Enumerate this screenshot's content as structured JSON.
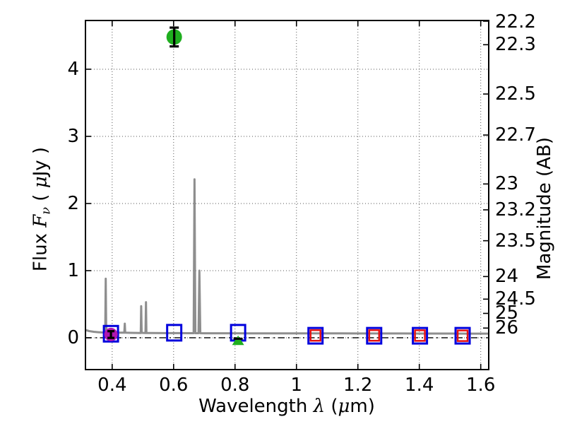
{
  "figure": {
    "background": "#ffffff"
  },
  "axes": {
    "xlabel": {
      "parts": [
        "Wavelength ",
        "λ",
        " (",
        "μ",
        "m)"
      ]
    },
    "ylabel_left": {
      "parts": [
        "Flux ",
        "F",
        "ν",
        " ( ",
        "μ",
        "Jy )"
      ]
    },
    "ylabel_right": "Magnitude (AB)"
  },
  "chart_data": {
    "type": "line",
    "title": "",
    "xlabel": "Wavelength λ (μm)",
    "ylabel_left": "Flux Fν (μJy)",
    "ylabel_right": "Magnitude (AB)",
    "xlim": [
      0.313,
      1.626
    ],
    "ylim": [
      -0.474,
      4.726
    ],
    "grid": true,
    "x_ticks": [
      0.4,
      0.6,
      0.8,
      1.0,
      1.2,
      1.4,
      1.6
    ],
    "x_tick_labels": [
      "0.4",
      "0.6",
      "0.8",
      "1",
      "1.2",
      "1.4",
      "1.6"
    ],
    "y_ticks_left": [
      0,
      1,
      2,
      3,
      4
    ],
    "y_tick_labels_left": [
      "0",
      "1",
      "2",
      "3",
      "4"
    ],
    "y_ticks_right_mag": [
      22.2,
      22.3,
      22.5,
      22.7,
      23,
      23.2,
      23.5,
      24,
      24.5,
      25,
      26
    ],
    "y_tick_labels_right": [
      "22.2",
      "22.3",
      "22.5",
      "22.7",
      "23",
      "23.2",
      "23.5",
      "24",
      "24.5",
      "25",
      "26"
    ],
    "mag_zeropoint_ujy": 23.9,
    "zero_line": {
      "y": 0,
      "style": "dash-dot",
      "color": "#000000"
    },
    "colors": {
      "spectrum": "#8e8e8e",
      "observed_squares": "#0000dd",
      "model_squares": "#e51212",
      "detection_circle": "#1fae1f",
      "model_circle": "#b016b0",
      "error_bars": "#000000"
    },
    "series": [
      {
        "name": "model_spectrum",
        "type": "line",
        "color": "#8e8e8e",
        "line_width": 3,
        "points": [
          [
            0.313,
            0.115
          ],
          [
            0.325,
            0.1
          ],
          [
            0.34,
            0.089
          ],
          [
            0.355,
            0.083
          ],
          [
            0.365,
            0.08
          ],
          [
            0.3762,
            0.078
          ],
          [
            0.3776,
            0.2
          ],
          [
            0.379,
            0.88
          ],
          [
            0.3804,
            0.2
          ],
          [
            0.3818,
            0.077
          ],
          [
            0.4,
            0.076
          ],
          [
            0.42,
            0.075
          ],
          [
            0.4395,
            0.075
          ],
          [
            0.441,
            0.21
          ],
          [
            0.4425,
            0.075
          ],
          [
            0.46,
            0.073
          ],
          [
            0.48,
            0.072
          ],
          [
            0.493,
            0.071
          ],
          [
            0.4945,
            0.47
          ],
          [
            0.496,
            0.073
          ],
          [
            0.5085,
            0.071
          ],
          [
            0.51,
            0.53
          ],
          [
            0.5115,
            0.071
          ],
          [
            0.53,
            0.07
          ],
          [
            0.57,
            0.069
          ],
          [
            0.61,
            0.069
          ],
          [
            0.65,
            0.068
          ],
          [
            0.6652,
            0.068
          ],
          [
            0.668,
            2.36
          ],
          [
            0.6708,
            0.068
          ],
          [
            0.6812,
            0.068
          ],
          [
            0.684,
            1.0
          ],
          [
            0.6868,
            0.068
          ],
          [
            0.7,
            0.067
          ],
          [
            0.75,
            0.067
          ],
          [
            0.8,
            0.067
          ],
          [
            0.85,
            0.066
          ],
          [
            0.9,
            0.066
          ],
          [
            0.95,
            0.066
          ],
          [
            1.0,
            0.066
          ],
          [
            1.05,
            0.065
          ],
          [
            1.1,
            0.065
          ],
          [
            1.15,
            0.065
          ],
          [
            1.2,
            0.064
          ],
          [
            1.25,
            0.064
          ],
          [
            1.3,
            0.064
          ],
          [
            1.35,
            0.064
          ],
          [
            1.4,
            0.063
          ],
          [
            1.45,
            0.063
          ],
          [
            1.5,
            0.063
          ],
          [
            1.55,
            0.062
          ],
          [
            1.626,
            0.062
          ]
        ]
      },
      {
        "name": "observed_photometry",
        "type": "scatter",
        "marker": "open_square",
        "color": "#0000dd",
        "size": 20,
        "x": [
          0.396,
          0.602,
          0.81,
          1.062,
          1.253,
          1.402,
          1.541
        ],
        "y": [
          0.06,
          0.075,
          0.075,
          0.03,
          0.03,
          0.03,
          0.03
        ]
      },
      {
        "name": "model_photometry",
        "type": "scatter",
        "marker": "open_square",
        "color": "#e51212",
        "size": 14,
        "x": [
          1.062,
          1.253,
          1.402,
          1.541
        ],
        "y": [
          0.035,
          0.035,
          0.033,
          0.03
        ]
      },
      {
        "name": "model_point_uband",
        "type": "scatter",
        "marker": "filled_circle",
        "color": "#b016b0",
        "size": 19,
        "x": [
          0.396
        ],
        "y": [
          0.048
        ],
        "yerr": [
          0.05
        ]
      },
      {
        "name": "detection_rband",
        "type": "scatter",
        "marker": "filled_circle",
        "color": "#1fae1f",
        "size": 22,
        "x": [
          0.602
        ],
        "y": [
          4.48
        ],
        "yerr": [
          0.14
        ]
      },
      {
        "name": "limit_iband",
        "type": "scatter",
        "marker": "filled_triangle_up",
        "color": "#1fae1f",
        "size": 17,
        "x": [
          0.81
        ],
        "y": [
          -0.04
        ],
        "cap_y": [
          -0.015
        ]
      }
    ]
  }
}
